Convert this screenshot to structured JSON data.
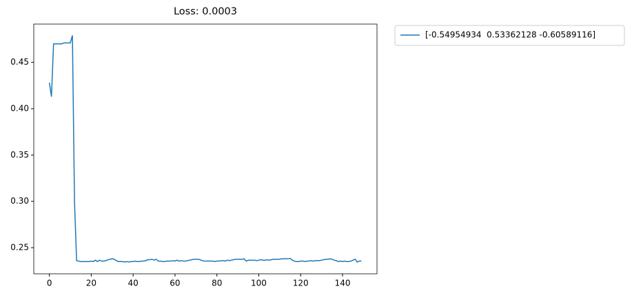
{
  "chart_data": {
    "type": "line",
    "title": "Loss: 0.0003",
    "x": [
      0,
      1,
      2,
      3,
      4,
      5,
      6,
      7,
      8,
      9,
      10,
      11,
      12,
      13,
      14,
      15,
      16,
      17,
      18,
      19,
      20,
      21,
      22,
      23,
      24,
      25,
      26,
      27,
      28,
      29,
      30,
      31,
      32,
      33,
      34,
      35,
      36,
      37,
      38,
      39,
      40,
      41,
      42,
      43,
      44,
      45,
      46,
      47,
      48,
      49,
      50,
      51,
      52,
      53,
      54,
      55,
      56,
      57,
      58,
      59,
      60,
      61,
      62,
      63,
      64,
      65,
      66,
      67,
      68,
      69,
      70,
      71,
      72,
      73,
      74,
      75,
      76,
      77,
      78,
      79,
      80,
      81,
      82,
      83,
      84,
      85,
      86,
      87,
      88,
      89,
      90,
      91,
      92,
      93,
      94,
      95,
      96,
      97,
      98,
      99,
      100,
      101,
      102,
      103,
      104,
      105,
      106,
      107,
      108,
      109,
      110,
      111,
      112,
      113,
      114,
      115,
      116,
      117,
      118,
      119,
      120,
      121,
      122,
      123,
      124,
      125,
      126,
      127,
      128,
      129,
      130,
      131,
      132,
      133,
      134,
      135,
      136,
      137,
      138,
      139,
      140,
      141,
      142,
      143,
      144,
      145,
      146,
      147,
      148,
      149
    ],
    "series": [
      {
        "name": "[-0.54954934  0.53362128 -0.60589116]",
        "color": "#1f77b4",
        "values": [
          0.428,
          0.413,
          0.47,
          0.47,
          0.47,
          0.47,
          0.47,
          0.471,
          0.471,
          0.471,
          0.471,
          0.479,
          0.3,
          0.236,
          0.2355,
          0.235,
          0.235,
          0.235,
          0.235,
          0.235,
          0.2355,
          0.235,
          0.2365,
          0.235,
          0.2365,
          0.2355,
          0.2355,
          0.236,
          0.237,
          0.2375,
          0.238,
          0.2375,
          0.236,
          0.235,
          0.235,
          0.235,
          0.2345,
          0.235,
          0.2345,
          0.235,
          0.235,
          0.2355,
          0.235,
          0.235,
          0.2355,
          0.2355,
          0.236,
          0.237,
          0.237,
          0.2375,
          0.2365,
          0.2375,
          0.2355,
          0.2355,
          0.235,
          0.235,
          0.2355,
          0.2355,
          0.2355,
          0.236,
          0.2355,
          0.2365,
          0.2355,
          0.236,
          0.2355,
          0.2355,
          0.236,
          0.2365,
          0.237,
          0.2375,
          0.2375,
          0.2375,
          0.237,
          0.236,
          0.2355,
          0.2355,
          0.2355,
          0.2355,
          0.2355,
          0.235,
          0.2355,
          0.2355,
          0.236,
          0.236,
          0.2355,
          0.2365,
          0.236,
          0.2365,
          0.237,
          0.2375,
          0.2375,
          0.2375,
          0.2375,
          0.238,
          0.2355,
          0.2365,
          0.2365,
          0.2365,
          0.2365,
          0.236,
          0.2365,
          0.237,
          0.2365,
          0.2365,
          0.237,
          0.2365,
          0.237,
          0.2375,
          0.2375,
          0.2375,
          0.2375,
          0.238,
          0.238,
          0.238,
          0.238,
          0.2385,
          0.2365,
          0.2355,
          0.235,
          0.235,
          0.2355,
          0.2355,
          0.235,
          0.2355,
          0.2355,
          0.236,
          0.2355,
          0.236,
          0.236,
          0.236,
          0.2365,
          0.237,
          0.2375,
          0.2375,
          0.238,
          0.2375,
          0.2365,
          0.236,
          0.235,
          0.2355,
          0.235,
          0.2355,
          0.235,
          0.235,
          0.2355,
          0.2365,
          0.2375,
          0.2345,
          0.2355,
          0.2355
        ]
      }
    ],
    "xlim": [
      -7.45,
      156.45
    ],
    "xticks": [
      0,
      20,
      40,
      60,
      80,
      100,
      120,
      140
    ],
    "ylim": [
      0.2218,
      0.4913
    ],
    "yticks": [
      0.25,
      {
        "value": 0.3,
        "label": "0.30"
      },
      0.35,
      {
        "value": 0.4,
        "label": "0.40"
      },
      0.45
    ],
    "legend": "outside-upper-right"
  }
}
